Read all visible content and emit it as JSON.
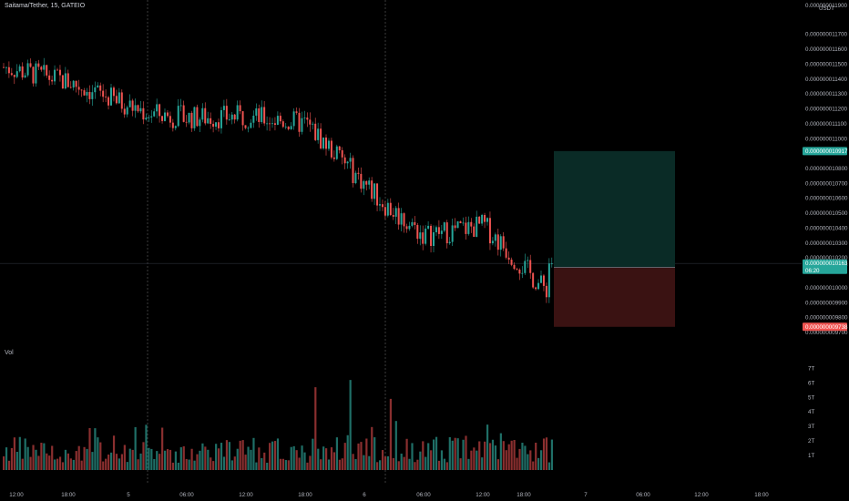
{
  "header": {
    "symbol": "Saitama/Tether, 15, GATEIO"
  },
  "currency": "USDT",
  "volume_pane": {
    "label": "Vol"
  },
  "colors": {
    "background": "#000000",
    "up": "#26a69a",
    "down": "#ef5350",
    "profit_zone": "#0a2b26",
    "loss_zone": "#3a1212",
    "text": "#b2b5be"
  },
  "price_axis": {
    "top_partial": "0.000000011900",
    "ticks": [
      "0.000000011700",
      "0.000000011600",
      "0.000000011500",
      "0.000000011400",
      "0.000000011300",
      "0.000000011200",
      "0.000000011100",
      "0.000000011000",
      "0.000000010800",
      "0.000000010700",
      "0.000000010600",
      "0.000000010500",
      "0.000000010400",
      "0.000000010300",
      "0.000000010200",
      "0.000000010000",
      "0.000000009900",
      "0.000000009800",
      "0.000000009700"
    ],
    "ylim": [
      9.7e-09,
      1.19e-08
    ]
  },
  "markers": {
    "target": {
      "value": "0.000000010917",
      "color": "#26a69a"
    },
    "current": {
      "value": "0.000000010163",
      "countdown": "06:20",
      "color": "#26a69a"
    },
    "entry": {
      "value": "0.000000010137",
      "color": "#0b3d38"
    },
    "stop": {
      "value": "0.000000009738",
      "color": "#ef5350"
    }
  },
  "volume_axis": {
    "ticks": [
      "7T",
      "6T",
      "5T",
      "4T",
      "3T",
      "2T",
      "1T"
    ]
  },
  "time_axis": {
    "ticks": [
      "12:00",
      "18:00",
      "5",
      "06:00",
      "12:00",
      "18:00",
      "6",
      "06:00",
      "12:00",
      "18:00",
      "7",
      "06:00",
      "12:00",
      "18:00"
    ]
  },
  "chart_data": {
    "type": "candlestick",
    "interval": "15",
    "price_unit": "USDT",
    "day_separators": [
      "5",
      "6"
    ],
    "price_trajectory": [
      {
        "time": "12:00",
        "price": 1.148e-08
      },
      {
        "time": "18:00",
        "price": 1.138e-08
      },
      {
        "time": "5",
        "price": 1.117e-08
      },
      {
        "time": "06:00",
        "price": 1.114e-08
      },
      {
        "time": "12:00",
        "price": 1.115e-08
      },
      {
        "time": "18:00",
        "price": 1.11e-08
      },
      {
        "time": "6",
        "price": 1.055e-08
      },
      {
        "time": "06:00",
        "price": 1.035e-08
      },
      {
        "time": "12:00",
        "price": 1.042e-08
      },
      {
        "time": "18:00",
        "price": 1e-08
      }
    ],
    "position": {
      "side": "long",
      "entry": 1.0137e-08,
      "target": 1.0917e-08,
      "stop": 9.738e-09
    }
  }
}
